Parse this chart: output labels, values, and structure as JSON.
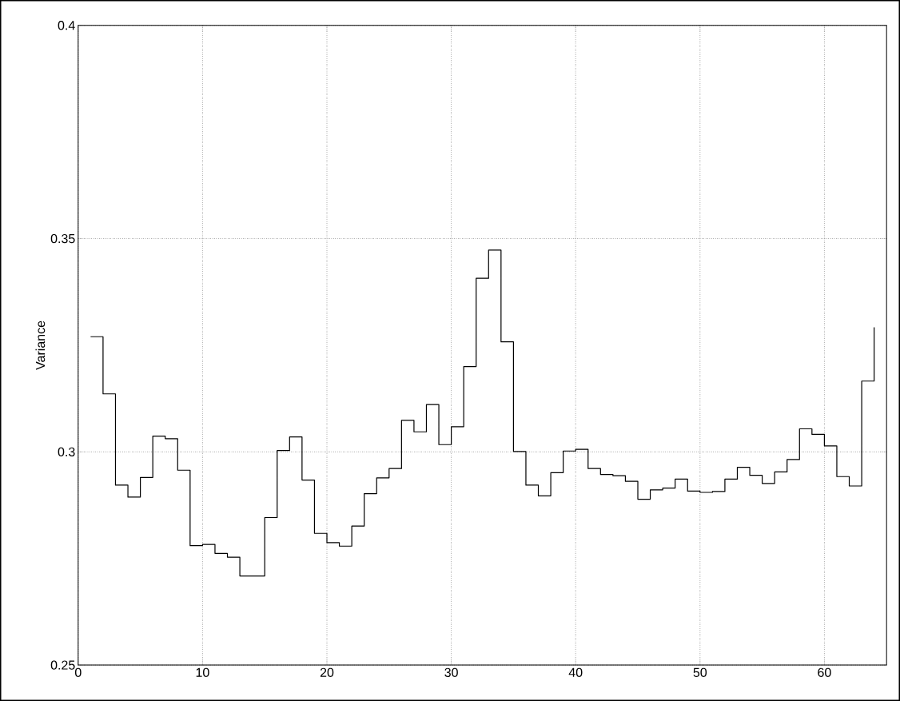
{
  "chart_data": {
    "type": "step",
    "ylabel": "Variance",
    "x": [
      1,
      2,
      3,
      4,
      5,
      6,
      7,
      8,
      9,
      10,
      11,
      12,
      13,
      14,
      15,
      16,
      17,
      18,
      19,
      20,
      21,
      22,
      23,
      24,
      25,
      26,
      27,
      28,
      29,
      30,
      31,
      32,
      33,
      34,
      35,
      36,
      37,
      38,
      39,
      40,
      41,
      42,
      43,
      44,
      45,
      46,
      47,
      48,
      49,
      50,
      51,
      52,
      53,
      54,
      55,
      56,
      57,
      58,
      59,
      60,
      61,
      62,
      63,
      64
    ],
    "values": [
      0.327,
      0.3136,
      0.2922,
      0.2894,
      0.294,
      0.3037,
      0.3031,
      0.2957,
      0.278,
      0.2783,
      0.2762,
      0.2753,
      0.2709,
      0.2709,
      0.2846,
      0.3003,
      0.3035,
      0.2934,
      0.2809,
      0.2787,
      0.2779,
      0.2826,
      0.2902,
      0.2939,
      0.2961,
      0.3074,
      0.3047,
      0.3111,
      0.3017,
      0.3059,
      0.32,
      0.3407,
      0.3473,
      0.3258,
      0.3001,
      0.2922,
      0.2897,
      0.2951,
      0.3002,
      0.3006,
      0.2961,
      0.2947,
      0.2944,
      0.2931,
      0.2889,
      0.2911,
      0.2915,
      0.2936,
      0.2908,
      0.2905,
      0.2907,
      0.2936,
      0.2964,
      0.2945,
      0.2926,
      0.2953,
      0.2982,
      0.3054,
      0.3041,
      0.3014,
      0.2942,
      0.292,
      0.3166,
      0.3292
    ],
    "color": "#000000",
    "xlim": [
      0,
      65
    ],
    "ylim": [
      0.25,
      0.4
    ],
    "xticks": [
      0,
      10,
      20,
      30,
      40,
      50,
      60
    ],
    "yticks": [
      0.25,
      0.3,
      0.35,
      0.4
    ],
    "grid": true
  }
}
